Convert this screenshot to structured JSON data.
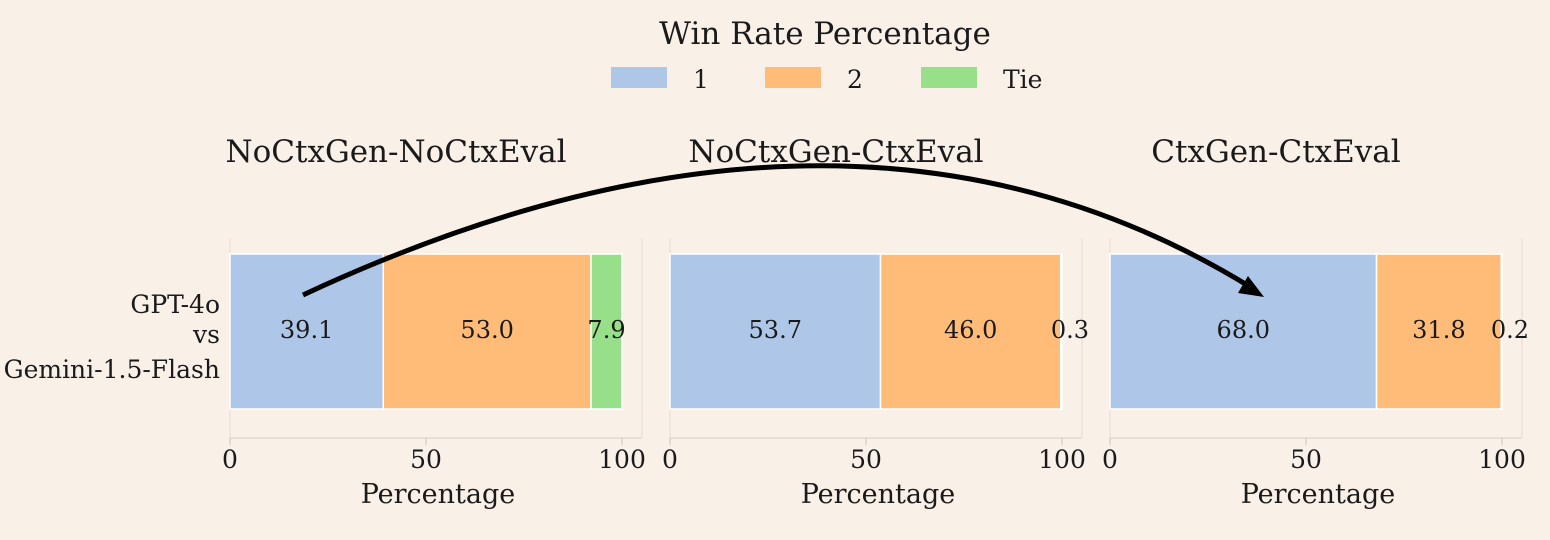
{
  "chart_data": {
    "type": "bar",
    "orientation": "horizontal",
    "stacked": true,
    "title": "Win Rate Percentage",
    "legend": {
      "placement": "top",
      "entries": [
        {
          "name": "1",
          "color": "#aec7e8"
        },
        {
          "name": "2",
          "color": "#ffbb78"
        },
        {
          "name": "Tie",
          "color": "#98df8a"
        }
      ]
    },
    "category_label": {
      "line1": "GPT-4o",
      "line2": "vs",
      "line3": "Gemini-1.5-Flash"
    },
    "xlim": [
      0,
      100
    ],
    "xticks": [
      "0",
      "50",
      "100"
    ],
    "panels": [
      {
        "title": "NoCtxGen-NoCtxEval",
        "xlabel": "Percentage",
        "values": [
          39.1,
          53.0,
          7.9
        ],
        "labels": [
          "39.1",
          "53.0",
          "7.9"
        ]
      },
      {
        "title": "NoCtxGen-CtxEval",
        "xlabel": "Percentage",
        "values": [
          53.7,
          46.0,
          0.3
        ],
        "labels": [
          "53.7",
          "46.0",
          "0.3"
        ]
      },
      {
        "title": "CtxGen-CtxEval",
        "xlabel": "Percentage",
        "values": [
          68.0,
          31.8,
          0.2
        ],
        "labels": [
          "68.0",
          "31.8",
          "0.2"
        ]
      }
    ],
    "annotation": "arrow from NoCtxGen-NoCtxEval to CtxGen-CtxEval"
  }
}
